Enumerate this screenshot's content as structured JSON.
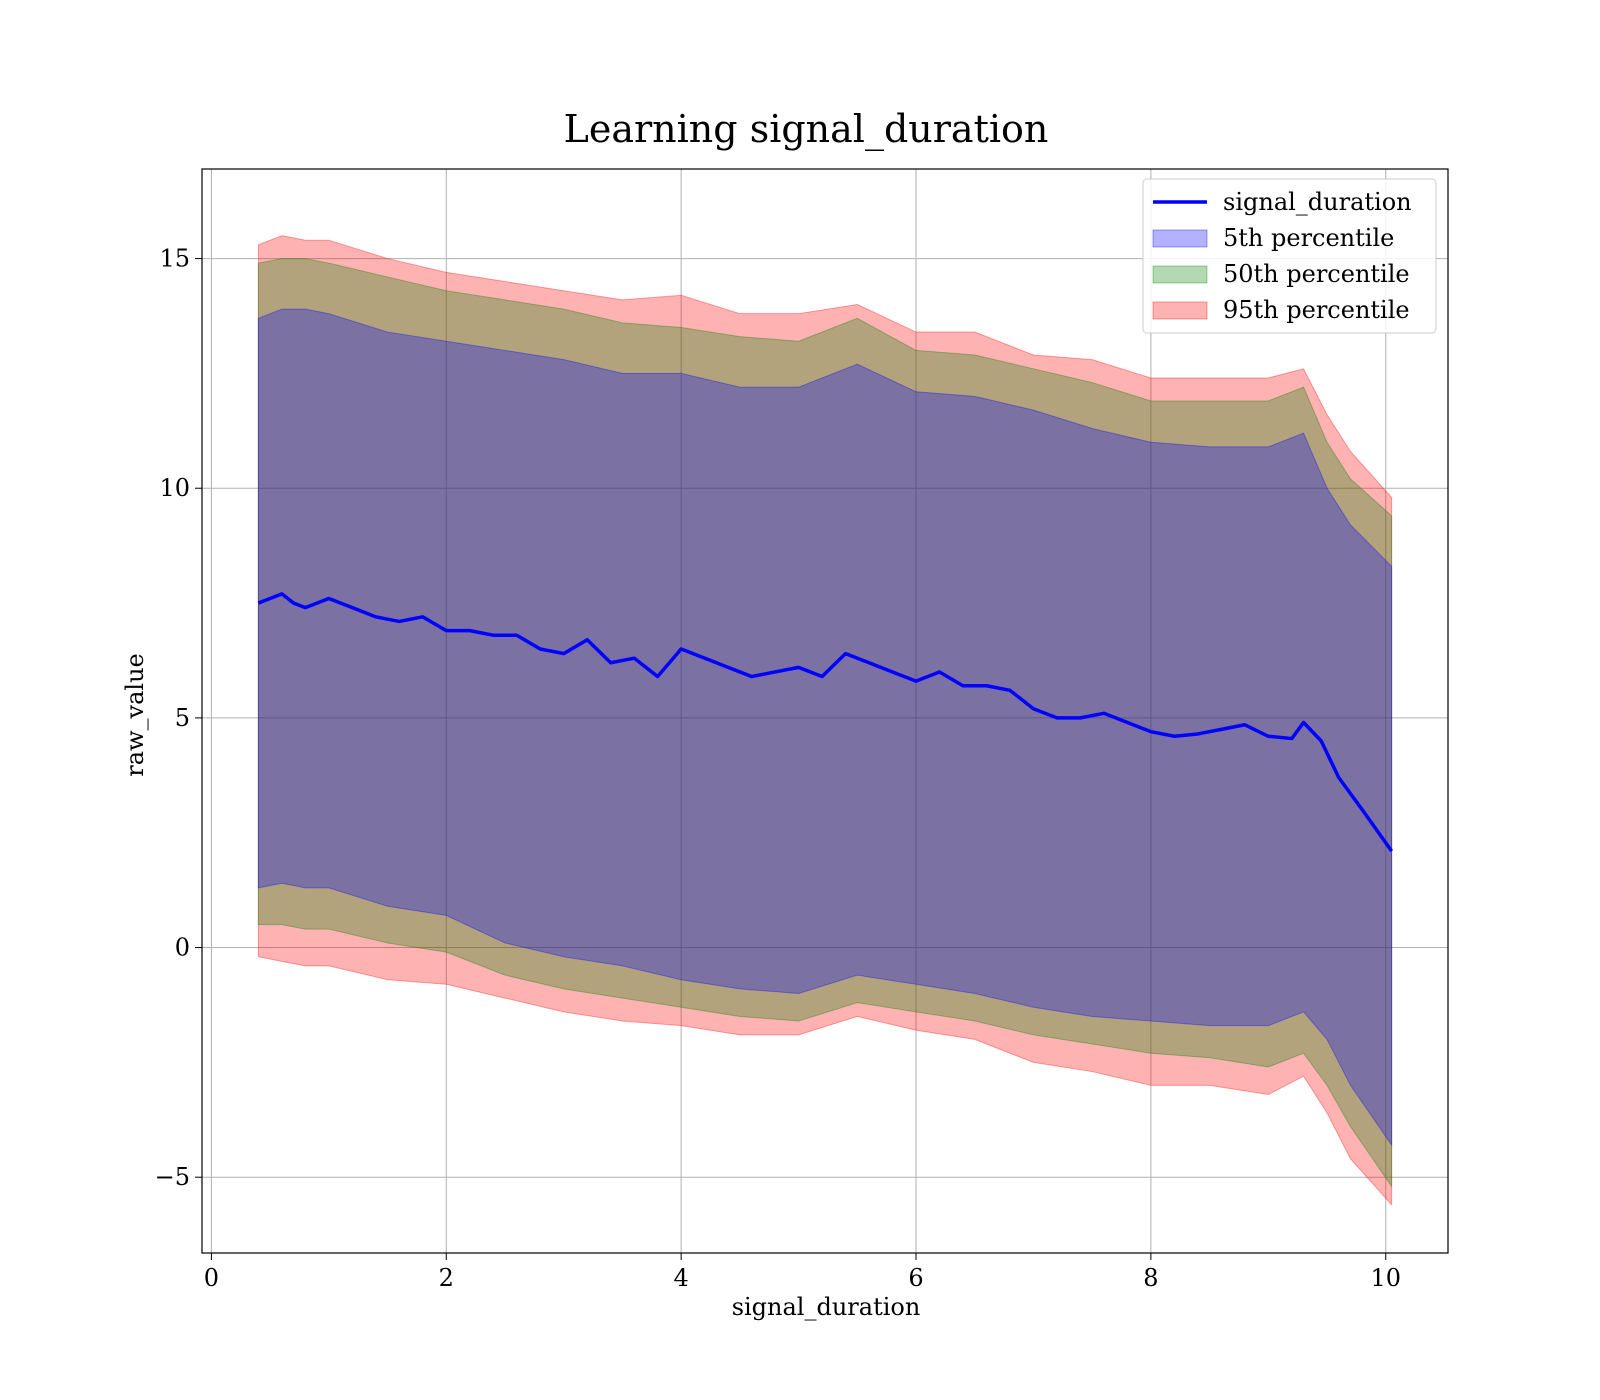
{
  "chart_data": {
    "type": "area",
    "title": "Learning signal_duration",
    "xlabel": "signal_duration",
    "ylabel": "raw_value",
    "xlim": [
      -0.08,
      10.53
    ],
    "ylim": [
      -6.65,
      16.95
    ],
    "xticks": [
      0,
      2,
      4,
      6,
      8,
      10
    ],
    "xtick_labels": [
      "0",
      "2",
      "4",
      "6",
      "8",
      "10"
    ],
    "yticks": [
      -5,
      0,
      5,
      10,
      15
    ],
    "ytick_labels": [
      "−5",
      "0",
      "5",
      "10",
      "15"
    ],
    "grid": true,
    "legend_position": "top-right",
    "line": {
      "name": "signal_duration",
      "color": "#0000ff",
      "x": [
        0.4,
        0.5,
        0.6,
        0.7,
        0.8,
        1.0,
        1.2,
        1.4,
        1.6,
        1.8,
        2.0,
        2.2,
        2.4,
        2.6,
        2.8,
        3.0,
        3.2,
        3.4,
        3.6,
        3.8,
        4.0,
        4.2,
        4.4,
        4.6,
        4.8,
        5.0,
        5.2,
        5.4,
        5.6,
        5.8,
        6.0,
        6.2,
        6.4,
        6.6,
        6.8,
        7.0,
        7.2,
        7.4,
        7.6,
        7.8,
        8.0,
        8.2,
        8.4,
        8.6,
        8.8,
        9.0,
        9.2,
        9.3,
        9.45,
        9.6,
        9.8,
        10.05
      ],
      "y": [
        7.5,
        7.6,
        7.7,
        7.5,
        7.4,
        7.6,
        7.4,
        7.2,
        7.1,
        7.2,
        6.9,
        6.9,
        6.8,
        6.8,
        6.5,
        6.4,
        6.7,
        6.2,
        6.3,
        5.9,
        6.5,
        6.3,
        6.1,
        5.9,
        6.0,
        6.1,
        5.9,
        6.4,
        6.2,
        6.0,
        5.8,
        6.0,
        5.7,
        5.7,
        5.6,
        5.2,
        5.0,
        5.0,
        5.1,
        4.9,
        4.7,
        4.6,
        4.65,
        4.75,
        4.85,
        4.6,
        4.55,
        4.9,
        4.5,
        3.7,
        3.0,
        2.1
      ]
    },
    "bands": [
      {
        "name": "5th percentile",
        "color": "#0000ff",
        "x": [
          0.4,
          0.6,
          0.8,
          1.0,
          1.5,
          2.0,
          2.5,
          3.0,
          3.5,
          4.0,
          4.5,
          5.0,
          5.5,
          6.0,
          6.5,
          7.0,
          7.5,
          8.0,
          8.5,
          9.0,
          9.3,
          9.5,
          9.7,
          10.05
        ],
        "lower": [
          1.3,
          1.4,
          1.3,
          1.3,
          0.9,
          0.7,
          0.1,
          -0.2,
          -0.4,
          -0.7,
          -0.9,
          -1.0,
          -0.6,
          -0.8,
          -1.0,
          -1.3,
          -1.5,
          -1.6,
          -1.7,
          -1.7,
          -1.4,
          -2.0,
          -3.0,
          -4.3
        ],
        "upper": [
          13.7,
          13.9,
          13.9,
          13.8,
          13.4,
          13.2,
          13.0,
          12.8,
          12.5,
          12.5,
          12.2,
          12.2,
          12.7,
          12.1,
          12.0,
          11.7,
          11.3,
          11.0,
          10.9,
          10.9,
          11.2,
          10.0,
          9.2,
          8.3
        ]
      },
      {
        "name": "50th percentile",
        "color": "#008000",
        "x": [
          0.4,
          0.6,
          0.8,
          1.0,
          1.5,
          2.0,
          2.5,
          3.0,
          3.5,
          4.0,
          4.5,
          5.0,
          5.5,
          6.0,
          6.5,
          7.0,
          7.5,
          8.0,
          8.5,
          9.0,
          9.3,
          9.5,
          9.7,
          10.05
        ],
        "lower": [
          0.5,
          0.5,
          0.4,
          0.4,
          0.1,
          -0.1,
          -0.6,
          -0.9,
          -1.1,
          -1.3,
          -1.5,
          -1.6,
          -1.2,
          -1.4,
          -1.6,
          -1.9,
          -2.1,
          -2.3,
          -2.4,
          -2.6,
          -2.3,
          -3.0,
          -3.9,
          -5.2
        ],
        "upper": [
          14.9,
          15.0,
          15.0,
          14.9,
          14.6,
          14.3,
          14.1,
          13.9,
          13.6,
          13.5,
          13.3,
          13.2,
          13.7,
          13.0,
          12.9,
          12.6,
          12.3,
          11.9,
          11.9,
          11.9,
          12.2,
          11.0,
          10.2,
          9.4
        ]
      },
      {
        "name": "95th percentile",
        "color": "#ff0000",
        "x": [
          0.4,
          0.6,
          0.8,
          1.0,
          1.5,
          2.0,
          2.5,
          3.0,
          3.5,
          4.0,
          4.5,
          5.0,
          5.5,
          6.0,
          6.5,
          7.0,
          7.5,
          8.0,
          8.5,
          9.0,
          9.3,
          9.5,
          9.7,
          10.05
        ],
        "lower": [
          -0.2,
          -0.3,
          -0.4,
          -0.4,
          -0.7,
          -0.8,
          -1.1,
          -1.4,
          -1.6,
          -1.7,
          -1.9,
          -1.9,
          -1.5,
          -1.8,
          -2.0,
          -2.5,
          -2.7,
          -3.0,
          -3.0,
          -3.2,
          -2.8,
          -3.6,
          -4.6,
          -5.6
        ],
        "upper": [
          15.3,
          15.5,
          15.4,
          15.4,
          15.0,
          14.7,
          14.5,
          14.3,
          14.1,
          14.2,
          13.8,
          13.8,
          14.0,
          13.4,
          13.4,
          12.9,
          12.8,
          12.4,
          12.4,
          12.4,
          12.6,
          11.6,
          10.8,
          9.8
        ]
      }
    ]
  }
}
